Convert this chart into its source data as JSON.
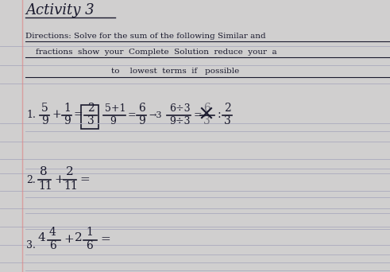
{
  "bg_color": "#d8d8d8",
  "line_color": "#aaaaaa",
  "ink_color": "#1a1a2e",
  "title": "Activity 3",
  "directions_line1": "Directions: Solve for the sum of the following Similar and",
  "directions_line2": "fractions  show  your  Complete  Solution  reduce  your  a",
  "directions_line3": "to    lowest  terms  if   possible",
  "problem1_label": "1.",
  "problem2_label": "2.",
  "problem3_label": "3."
}
